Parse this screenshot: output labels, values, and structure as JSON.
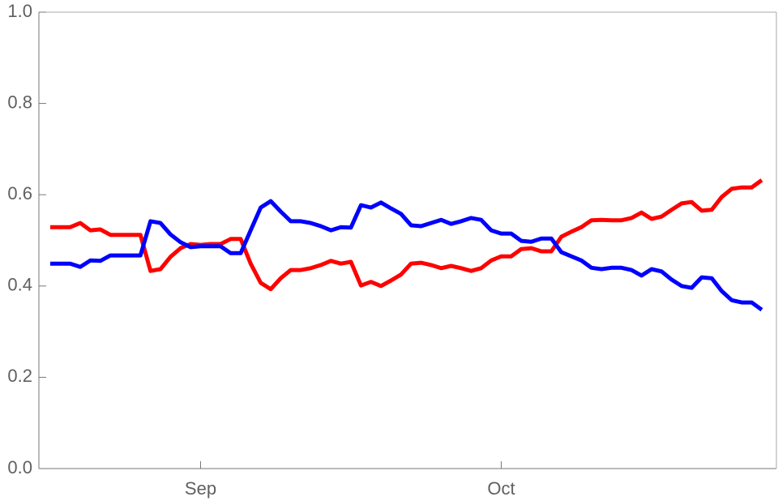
{
  "chart_data": {
    "type": "line",
    "categories": [
      null,
      null,
      null,
      null,
      null,
      null,
      null,
      null,
      null,
      null,
      null,
      null,
      null,
      null,
      null,
      "Sep",
      null,
      null,
      null,
      null,
      null,
      null,
      null,
      null,
      null,
      null,
      null,
      null,
      null,
      null,
      null,
      null,
      null,
      null,
      null,
      null,
      null,
      null,
      null,
      null,
      null,
      null,
      null,
      null,
      null,
      "Oct",
      null,
      null,
      null,
      null,
      null,
      null,
      null,
      null,
      null,
      null,
      null,
      null,
      null,
      null,
      null,
      null,
      null,
      null,
      null,
      null,
      null,
      null,
      null,
      null,
      null,
      null
    ],
    "series": [
      {
        "color": "#ff0000",
        "values": [
          0.529,
          0.529,
          0.529,
          0.538,
          0.522,
          0.524,
          0.512,
          0.512,
          0.512,
          0.512,
          0.433,
          0.437,
          0.464,
          0.483,
          0.492,
          0.49,
          0.492,
          0.492,
          0.503,
          0.503,
          0.449,
          0.407,
          0.393,
          0.417,
          0.435,
          0.435,
          0.439,
          0.446,
          0.455,
          0.449,
          0.453,
          0.401,
          0.409,
          0.4,
          0.412,
          0.425,
          0.449,
          0.451,
          0.446,
          0.439,
          0.444,
          0.439,
          0.433,
          0.439,
          0.456,
          0.465,
          0.465,
          0.481,
          0.483,
          0.476,
          0.476,
          0.508,
          0.519,
          0.529,
          0.544,
          0.545,
          0.544,
          0.544,
          0.549,
          0.561,
          0.547,
          0.552,
          0.567,
          0.581,
          0.584,
          0.565,
          0.567,
          0.595,
          0.613,
          0.616,
          0.616,
          0.632
        ]
      },
      {
        "color": "#0000ff",
        "values": [
          0.449,
          0.449,
          0.449,
          0.442,
          0.456,
          0.455,
          0.467,
          0.467,
          0.467,
          0.467,
          0.542,
          0.538,
          0.513,
          0.496,
          0.485,
          0.487,
          0.487,
          0.487,
          0.472,
          0.472,
          0.522,
          0.572,
          0.586,
          0.563,
          0.542,
          0.542,
          0.538,
          0.531,
          0.522,
          0.529,
          0.528,
          0.577,
          0.572,
          0.583,
          0.57,
          0.558,
          0.533,
          0.531,
          0.538,
          0.545,
          0.536,
          0.542,
          0.549,
          0.545,
          0.522,
          0.515,
          0.515,
          0.499,
          0.497,
          0.504,
          0.504,
          0.474,
          0.465,
          0.456,
          0.44,
          0.437,
          0.44,
          0.44,
          0.435,
          0.423,
          0.437,
          0.432,
          0.414,
          0.4,
          0.396,
          0.419,
          0.417,
          0.389,
          0.369,
          0.364,
          0.364,
          0.348
        ]
      }
    ],
    "ylim": [
      0,
      1
    ],
    "yticks": [
      {
        "value": 0,
        "label": "0.0"
      },
      0.2,
      0.4,
      0.6,
      0.8,
      {
        "value": 1,
        "label": "1.0"
      }
    ],
    "grid": false
  }
}
